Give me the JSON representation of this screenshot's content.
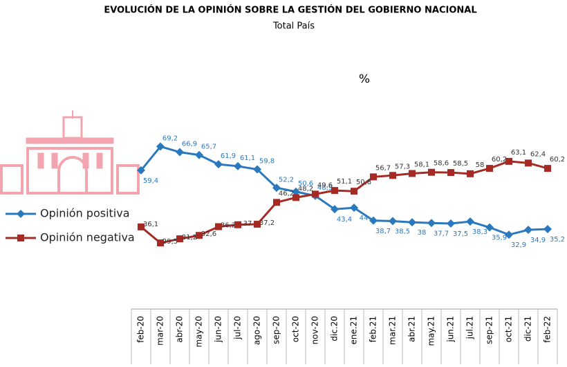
{
  "chart_data": {
    "type": "line",
    "title": "EVOLUCIÓN DE LA OPINIÓN SOBRE LA GESTIÓN DEL GOBIERNO NACIONAL",
    "subtitle": "Total País",
    "unit_label": "%",
    "categories": [
      "feb-20",
      "mar-20",
      "abr-20",
      "may-20",
      "jun-20",
      "jul-20",
      "ago-20",
      "sep-20",
      "oct-20",
      "nov-20",
      "dic.20",
      "ene.21",
      "feb.21",
      "mar.21",
      "abr.21",
      "may.21",
      "jun.21",
      "jul.21",
      "sep-21",
      "oct-21",
      "dic-21",
      "feb-22"
    ],
    "ylim": [
      0,
      100
    ],
    "series": [
      {
        "name": "Opinión positiva",
        "color": "#2a78be",
        "values": [
          59.4,
          69.2,
          66.9,
          65.7,
          61.9,
          61.1,
          59.8,
          52.2,
          50.6,
          48.9,
          43.4,
          44,
          38.7,
          38.5,
          38,
          37.7,
          37.5,
          38.3,
          35.9,
          32.9,
          34.9,
          35.2
        ],
        "value_labels": [
          "59,4",
          "69,2",
          "66,9",
          "65,7",
          "61,9",
          "61,1",
          "59,8",
          "52,2",
          "50,6",
          "48,9",
          "43,4",
          "44",
          "38,7",
          "38,5",
          "38",
          "37,7",
          "37,5",
          "38,3",
          "35,9",
          "32,9",
          "34,9",
          "35,2"
        ]
      },
      {
        "name": "Opinión negativa",
        "color": "#a52a24",
        "values": [
          36.1,
          29.5,
          31.2,
          32.6,
          36.2,
          37,
          37.2,
          46.2,
          48.2,
          49.6,
          51.1,
          50.8,
          56.7,
          57.3,
          58.1,
          58.6,
          58.5,
          58,
          60.2,
          63.1,
          62.4,
          60.2
        ],
        "value_labels": [
          "36,1",
          "29,5",
          "31,2",
          "32,6",
          "36,2",
          "37",
          "37,2",
          "46,2",
          "48,2",
          "49,6",
          "51,1",
          "50,8",
          "56,7",
          "57,3",
          "58,1",
          "58,6",
          "58,5",
          "58",
          "60,2",
          "63,1",
          "62,4",
          "60,2"
        ]
      }
    ]
  }
}
